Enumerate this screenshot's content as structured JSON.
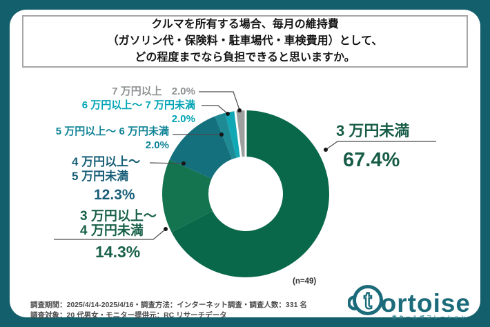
{
  "title": {
    "lines": [
      "クルマを所有する場合、毎月の維持費",
      "（ガソリン代・保険料・駐車場代・車検費用）として、",
      "どの程度までなら負担できると思いますか。"
    ]
  },
  "chart_data": {
    "type": "pie",
    "donut": true,
    "direction": "clockwise",
    "start_angle_deg": 0,
    "n_label": "(n=49)",
    "unit": "%",
    "segments": [
      {
        "label": "3 万円未満",
        "label_lines": [
          "3 万円未満"
        ],
        "value": 67.4,
        "color": "#0A684A",
        "label_color": "#175C46"
      },
      {
        "label": "3 万円以上～ 4 万円未満",
        "label_lines": [
          "3 万円以上～",
          "4 万円未満"
        ],
        "value": 14.3,
        "color": "#14744F",
        "label_color": "#186049"
      },
      {
        "label": "4 万円以上～ 5 万円未満",
        "label_lines": [
          "4 万円以上～",
          "5 万円未満"
        ],
        "value": 12.3,
        "color": "#15707E",
        "label_color": "#175E78"
      },
      {
        "label": "5 万円以上～ 6 万円未満",
        "label_lines": [
          "5 万円以上～ 6 万円未満"
        ],
        "value": 2.0,
        "color": "#1E8A94",
        "label_color": "#0F8396"
      },
      {
        "label": "6 万円以上～ 7 万円未満",
        "label_lines": [
          "6 万円以上～ 7 万円未満"
        ],
        "value": 2.0,
        "color": "#10A8B4",
        "label_color": "#00A4B5"
      },
      {
        "label": "7 万円以上",
        "label_lines": [
          "7 万円以上"
        ],
        "value": 2.0,
        "color": "#9EA0A0",
        "label_color": "#8E9192"
      }
    ]
  },
  "footer": {
    "lines": [
      "調査期間：2025/4/14-2025/4/16・調査方法：インターネット調査・調査人数：331 名",
      "調査対象：20 代男女・モニター提供元：RC リサーチデータ"
    ]
  },
  "logo": {
    "icon_letter": "t",
    "wordmark": "ortoise",
    "subtext": "株カールザコレーション"
  },
  "colors": {
    "frame": "#135F6C",
    "card": "#FFFFFF",
    "logo": "#1B6B7A"
  }
}
